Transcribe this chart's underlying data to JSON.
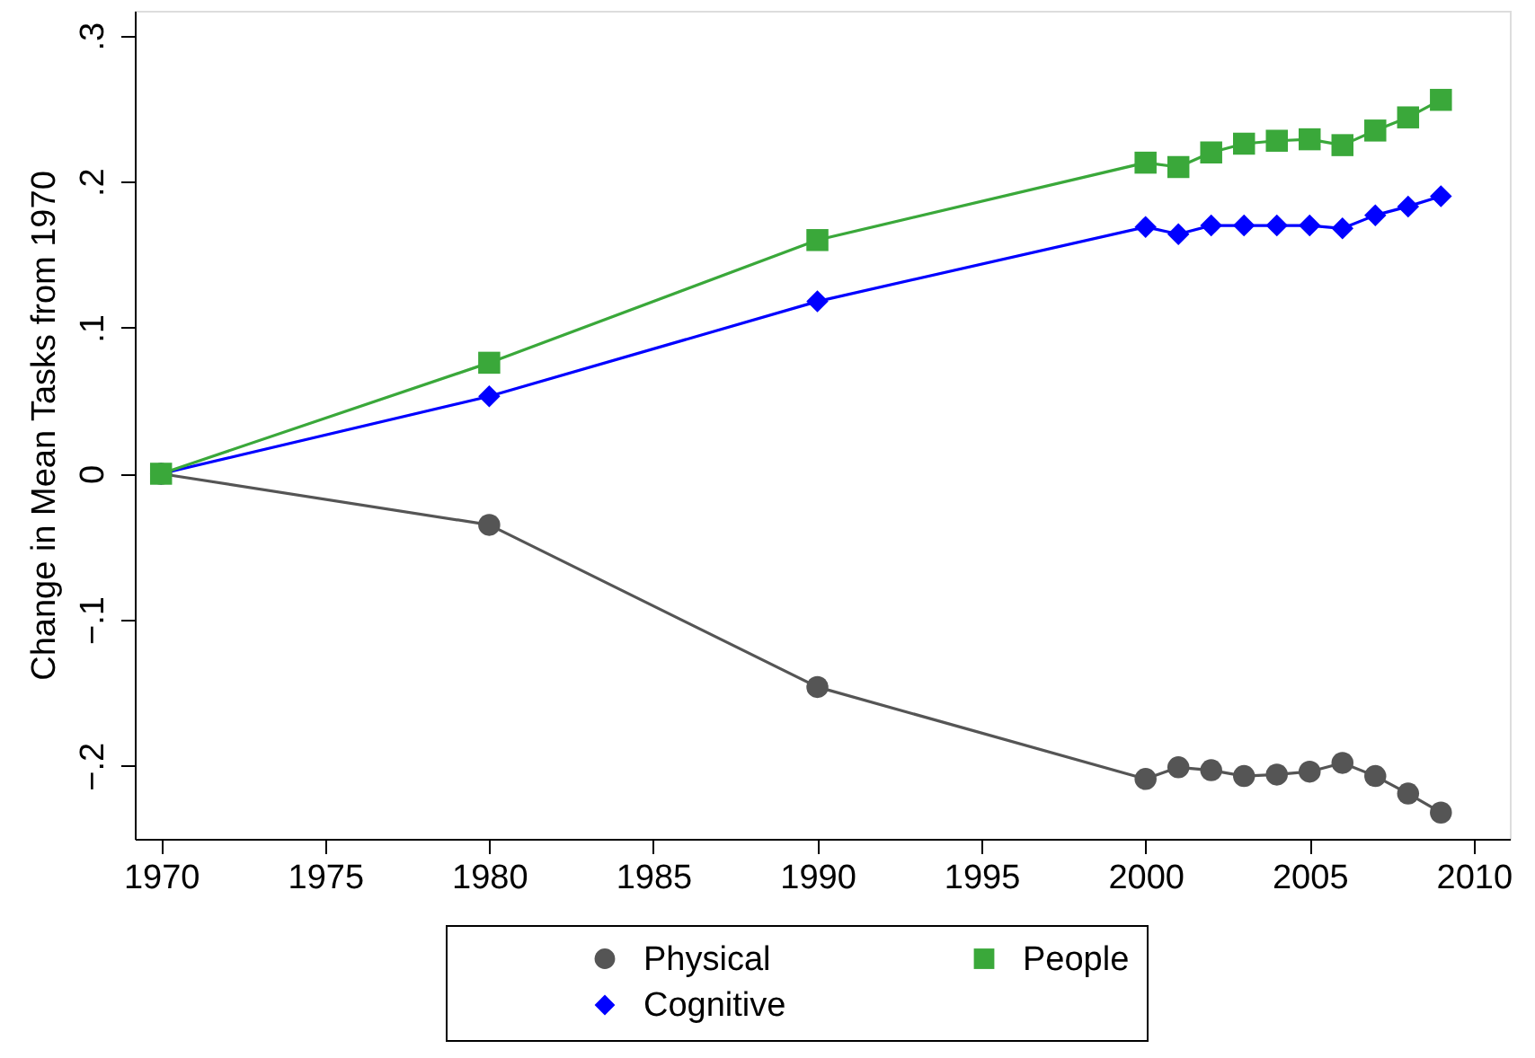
{
  "chart_data": {
    "type": "line",
    "ylabel": "Change in Mean Tasks from 1970",
    "x": [
      1970,
      1980,
      1990,
      2000,
      2001,
      2002,
      2003,
      2004,
      2005,
      2006,
      2007,
      2008,
      2009
    ],
    "series": [
      {
        "name": "Physical",
        "color": "#555555",
        "marker": "circle",
        "values": [
          0,
          -0.035,
          -0.146,
          -0.209,
          -0.201,
          -0.203,
          -0.207,
          -0.206,
          -0.204,
          -0.198,
          -0.207,
          -0.219,
          -0.232
        ]
      },
      {
        "name": "Cognitive",
        "color": "#0000ff",
        "marker": "diamond",
        "values": [
          0,
          0.053,
          0.118,
          0.169,
          0.164,
          0.17,
          0.17,
          0.17,
          0.17,
          0.168,
          0.177,
          0.183,
          0.19
        ]
      },
      {
        "name": "People",
        "color": "#3aa83a",
        "marker": "square",
        "values": [
          0,
          0.076,
          0.16,
          0.213,
          0.21,
          0.22,
          0.226,
          0.228,
          0.229,
          0.225,
          0.235,
          0.244,
          0.256
        ]
      }
    ],
    "xlim": [
      1969.2,
      2011.1
    ],
    "xticks": [
      1970,
      1975,
      1980,
      1985,
      1990,
      1995,
      2000,
      2005,
      2010
    ],
    "ylim": [
      -0.25,
      0.317
    ],
    "yticks": [
      {
        "value": -0.2,
        "label": "−.2"
      },
      {
        "value": -0.1,
        "label": "−.1"
      },
      0,
      {
        "value": 0.1,
        "label": ".1"
      },
      {
        "value": 0.2,
        "label": ".2"
      },
      {
        "value": 0.3,
        "label": ".3"
      }
    ],
    "grid": false,
    "legend": "bottom",
    "line_style": "solid"
  }
}
